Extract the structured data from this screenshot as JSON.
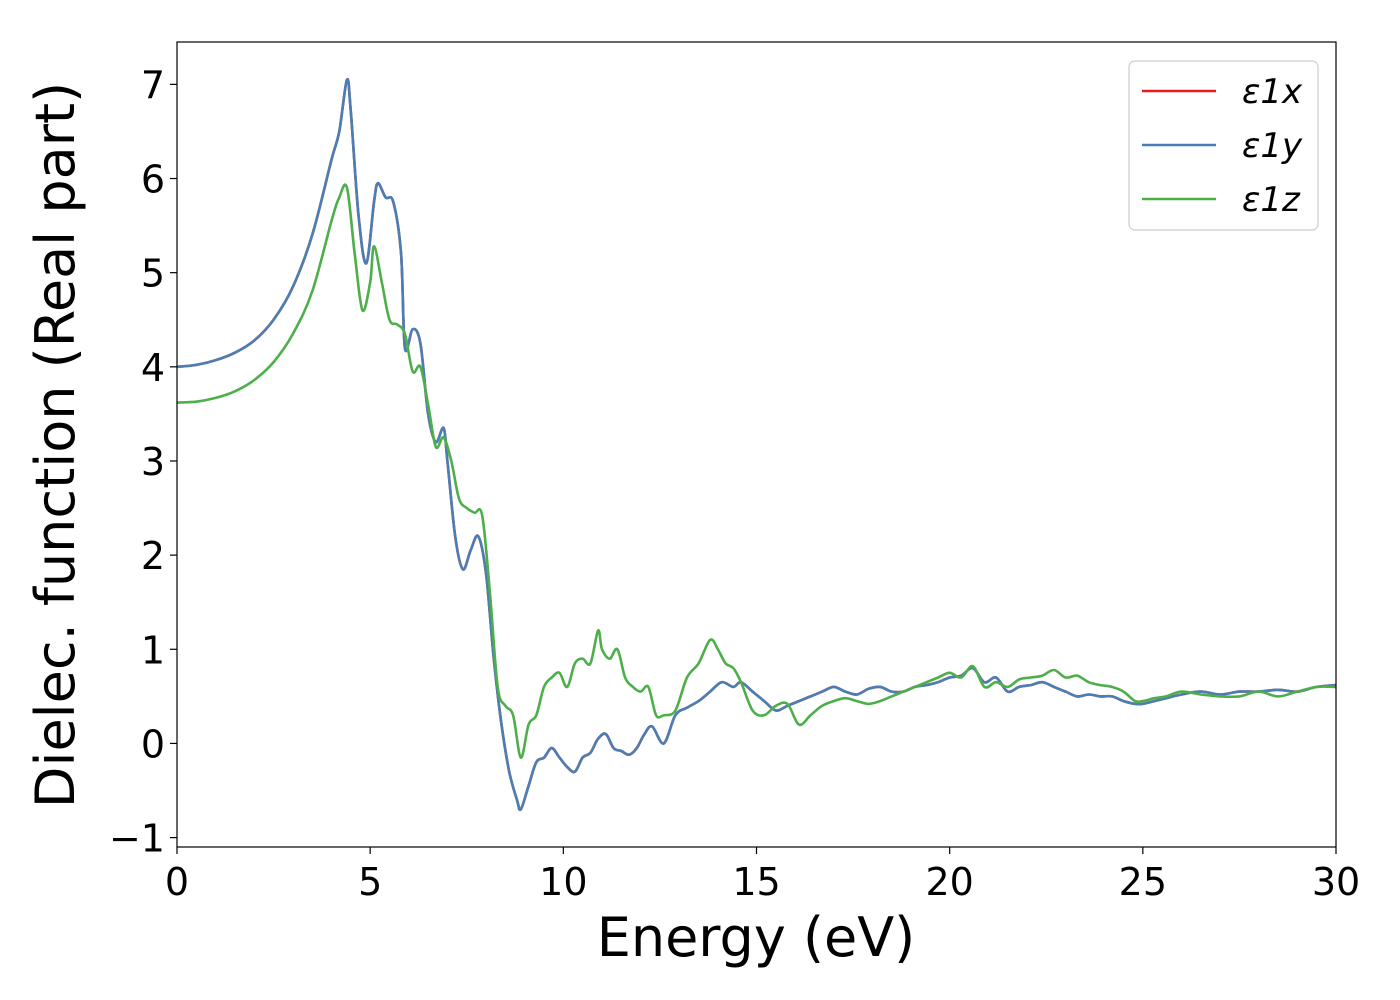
{
  "chart_data": {
    "type": "line",
    "title": "",
    "xlabel": "Energy (eV)",
    "ylabel": "Dielec. function (Real part)",
    "xlim": [
      0,
      30
    ],
    "ylim": [
      -1.1,
      7.45
    ],
    "xticks": [
      0,
      5,
      10,
      15,
      20,
      25,
      30
    ],
    "xtick_labels": [
      "0",
      "5",
      "10",
      "15",
      "20",
      "25",
      "30"
    ],
    "yticks": [
      -1,
      0,
      1,
      2,
      3,
      4,
      5,
      6,
      7
    ],
    "ytick_labels": [
      "−1",
      "0",
      "1",
      "2",
      "3",
      "4",
      "5",
      "6",
      "7"
    ],
    "grid": false,
    "legend_position": "upper right",
    "legend": [
      "ε1x",
      "ε1y",
      "ε1z"
    ],
    "series": [
      {
        "name": "ε1x",
        "color": "#e41a1c",
        "x": [
          0,
          0.5,
          1,
          1.5,
          2,
          2.5,
          3,
          3.5,
          4,
          4.2,
          4.4,
          4.5,
          4.7,
          4.9,
          5.1,
          5.2,
          5.4,
          5.6,
          5.8,
          5.9,
          6.1,
          6.3,
          6.5,
          6.7,
          6.9,
          7.0,
          7.2,
          7.4,
          7.6,
          7.8,
          8.0,
          8.2,
          8.4,
          8.6,
          8.8,
          8.9,
          9.1,
          9.3,
          9.5,
          9.7,
          9.9,
          10.1,
          10.3,
          10.5,
          10.7,
          10.9,
          11.1,
          11.3,
          11.5,
          11.7,
          11.9,
          12.1,
          12.3,
          12.6,
          12.9,
          13.2,
          13.5,
          13.8,
          14.1,
          14.4,
          14.6,
          14.9,
          15.2,
          15.5,
          15.8,
          16.1,
          16.4,
          16.7,
          17.0,
          17.3,
          17.6,
          17.9,
          18.2,
          18.5,
          18.8,
          19.1,
          19.4,
          19.7,
          20.0,
          20.3,
          20.6,
          20.9,
          21.2,
          21.5,
          21.8,
          22.1,
          22.4,
          22.7,
          23.0,
          23.3,
          23.6,
          23.9,
          24.2,
          24.5,
          24.8,
          25.0,
          25.3,
          25.6,
          26.0,
          26.5,
          27.0,
          27.5,
          28.0,
          28.5,
          29.0,
          29.5,
          30.0
        ],
        "y": [
          4.0,
          4.02,
          4.07,
          4.15,
          4.28,
          4.5,
          4.85,
          5.4,
          6.2,
          6.5,
          7.05,
          6.7,
          5.6,
          5.1,
          5.75,
          5.95,
          5.8,
          5.75,
          5.2,
          4.2,
          4.4,
          4.25,
          3.5,
          3.2,
          3.35,
          3.0,
          2.2,
          1.85,
          2.05,
          2.2,
          1.8,
          0.9,
          0.2,
          -0.3,
          -0.6,
          -0.7,
          -0.45,
          -0.2,
          -0.15,
          -0.05,
          -0.15,
          -0.25,
          -0.3,
          -0.15,
          -0.1,
          0.05,
          0.1,
          -0.05,
          -0.08,
          -0.12,
          -0.05,
          0.1,
          0.18,
          0.0,
          0.3,
          0.38,
          0.45,
          0.55,
          0.65,
          0.6,
          0.65,
          0.55,
          0.45,
          0.35,
          0.4,
          0.45,
          0.5,
          0.55,
          0.6,
          0.55,
          0.52,
          0.58,
          0.6,
          0.55,
          0.55,
          0.6,
          0.62,
          0.65,
          0.7,
          0.72,
          0.8,
          0.65,
          0.7,
          0.55,
          0.6,
          0.62,
          0.65,
          0.6,
          0.55,
          0.5,
          0.52,
          0.5,
          0.5,
          0.45,
          0.42,
          0.42,
          0.45,
          0.48,
          0.52,
          0.55,
          0.52,
          0.55,
          0.55,
          0.57,
          0.55,
          0.6,
          0.62
        ]
      },
      {
        "name": "ε1y",
        "color": "#4a7fb5",
        "x": [
          0,
          0.5,
          1,
          1.5,
          2,
          2.5,
          3,
          3.5,
          4,
          4.2,
          4.4,
          4.5,
          4.7,
          4.9,
          5.1,
          5.2,
          5.4,
          5.6,
          5.8,
          5.9,
          6.1,
          6.3,
          6.5,
          6.7,
          6.9,
          7.0,
          7.2,
          7.4,
          7.6,
          7.8,
          8.0,
          8.2,
          8.4,
          8.6,
          8.8,
          8.9,
          9.1,
          9.3,
          9.5,
          9.7,
          9.9,
          10.1,
          10.3,
          10.5,
          10.7,
          10.9,
          11.1,
          11.3,
          11.5,
          11.7,
          11.9,
          12.1,
          12.3,
          12.6,
          12.9,
          13.2,
          13.5,
          13.8,
          14.1,
          14.4,
          14.6,
          14.9,
          15.2,
          15.5,
          15.8,
          16.1,
          16.4,
          16.7,
          17.0,
          17.3,
          17.6,
          17.9,
          18.2,
          18.5,
          18.8,
          19.1,
          19.4,
          19.7,
          20.0,
          20.3,
          20.6,
          20.9,
          21.2,
          21.5,
          21.8,
          22.1,
          22.4,
          22.7,
          23.0,
          23.3,
          23.6,
          23.9,
          24.2,
          24.5,
          24.8,
          25.0,
          25.3,
          25.6,
          26.0,
          26.5,
          27.0,
          27.5,
          28.0,
          28.5,
          29.0,
          29.5,
          30.0
        ],
        "y": [
          4.0,
          4.02,
          4.07,
          4.15,
          4.28,
          4.5,
          4.85,
          5.4,
          6.2,
          6.5,
          7.05,
          6.7,
          5.6,
          5.1,
          5.75,
          5.95,
          5.8,
          5.75,
          5.2,
          4.2,
          4.4,
          4.25,
          3.5,
          3.2,
          3.35,
          3.0,
          2.2,
          1.85,
          2.05,
          2.2,
          1.8,
          0.9,
          0.2,
          -0.3,
          -0.6,
          -0.7,
          -0.45,
          -0.2,
          -0.15,
          -0.05,
          -0.15,
          -0.25,
          -0.3,
          -0.15,
          -0.1,
          0.05,
          0.1,
          -0.05,
          -0.08,
          -0.12,
          -0.05,
          0.1,
          0.18,
          0.0,
          0.3,
          0.38,
          0.45,
          0.55,
          0.65,
          0.6,
          0.65,
          0.55,
          0.45,
          0.35,
          0.4,
          0.45,
          0.5,
          0.55,
          0.6,
          0.55,
          0.52,
          0.58,
          0.6,
          0.55,
          0.55,
          0.6,
          0.62,
          0.65,
          0.7,
          0.72,
          0.8,
          0.65,
          0.7,
          0.55,
          0.6,
          0.62,
          0.65,
          0.6,
          0.55,
          0.5,
          0.52,
          0.5,
          0.5,
          0.45,
          0.42,
          0.42,
          0.45,
          0.48,
          0.52,
          0.55,
          0.52,
          0.55,
          0.55,
          0.57,
          0.55,
          0.6,
          0.62
        ]
      },
      {
        "name": "ε1z",
        "color": "#4daf4a",
        "x": [
          0,
          0.5,
          1,
          1.5,
          2,
          2.5,
          3,
          3.5,
          4,
          4.2,
          4.4,
          4.6,
          4.8,
          5.0,
          5.1,
          5.3,
          5.5,
          5.7,
          5.9,
          6.1,
          6.3,
          6.5,
          6.7,
          6.9,
          7.1,
          7.3,
          7.5,
          7.7,
          7.9,
          8.1,
          8.3,
          8.5,
          8.7,
          8.9,
          9.1,
          9.3,
          9.5,
          9.7,
          9.9,
          10.1,
          10.3,
          10.5,
          10.7,
          10.9,
          11.0,
          11.2,
          11.4,
          11.6,
          11.8,
          12.0,
          12.2,
          12.4,
          12.6,
          12.9,
          13.2,
          13.5,
          13.8,
          14.0,
          14.2,
          14.4,
          14.6,
          14.9,
          15.2,
          15.5,
          15.8,
          16.1,
          16.4,
          16.7,
          17.0,
          17.3,
          17.6,
          17.9,
          18.2,
          18.5,
          18.8,
          19.1,
          19.4,
          19.7,
          20.0,
          20.3,
          20.6,
          20.9,
          21.2,
          21.5,
          21.8,
          22.1,
          22.4,
          22.7,
          23.0,
          23.3,
          23.6,
          23.9,
          24.2,
          24.5,
          24.8,
          25.0,
          25.3,
          25.6,
          26.0,
          26.5,
          27.0,
          27.5,
          28.0,
          28.5,
          29.0,
          29.5,
          30.0
        ],
        "y": [
          3.62,
          3.63,
          3.67,
          3.74,
          3.86,
          4.05,
          4.35,
          4.8,
          5.55,
          5.8,
          5.9,
          5.2,
          4.6,
          4.9,
          5.28,
          4.9,
          4.5,
          4.45,
          4.35,
          3.95,
          4.0,
          3.6,
          3.15,
          3.25,
          3.0,
          2.6,
          2.5,
          2.45,
          2.42,
          1.6,
          0.6,
          0.4,
          0.3,
          -0.15,
          0.2,
          0.3,
          0.6,
          0.7,
          0.75,
          0.6,
          0.85,
          0.9,
          0.85,
          1.2,
          1.0,
          0.9,
          1.0,
          0.7,
          0.6,
          0.55,
          0.6,
          0.3,
          0.3,
          0.35,
          0.7,
          0.85,
          1.1,
          1.0,
          0.85,
          0.8,
          0.65,
          0.35,
          0.3,
          0.4,
          0.42,
          0.2,
          0.3,
          0.4,
          0.45,
          0.48,
          0.45,
          0.42,
          0.45,
          0.5,
          0.55,
          0.6,
          0.65,
          0.7,
          0.75,
          0.7,
          0.82,
          0.6,
          0.65,
          0.6,
          0.68,
          0.7,
          0.72,
          0.78,
          0.7,
          0.72,
          0.65,
          0.62,
          0.6,
          0.55,
          0.45,
          0.45,
          0.48,
          0.5,
          0.55,
          0.52,
          0.5,
          0.5,
          0.55,
          0.5,
          0.55,
          0.6,
          0.6
        ]
      }
    ]
  }
}
